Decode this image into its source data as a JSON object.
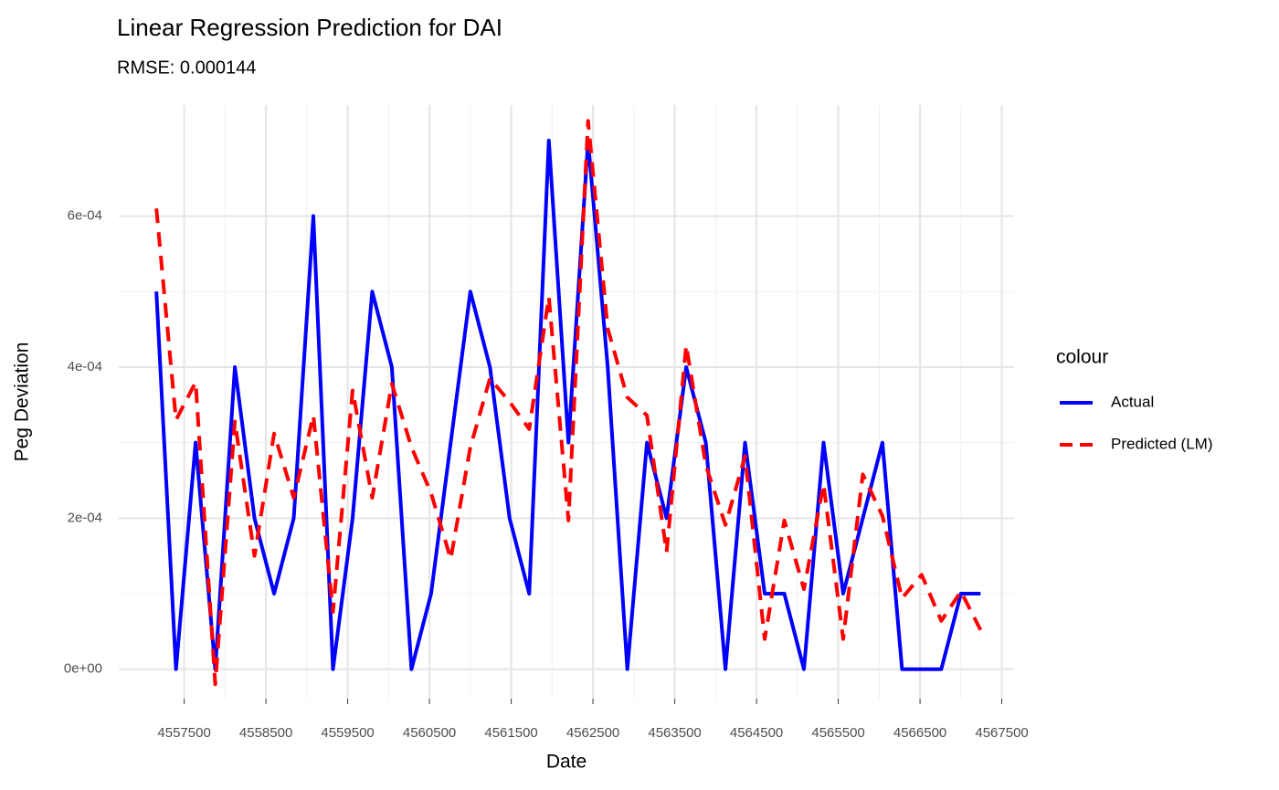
{
  "chart_data": {
    "type": "line",
    "title": "Linear Regression Prediction for DAI",
    "subtitle": "RMSE: 0.000144",
    "x_label": "Date",
    "y_label": "Peg Deviation",
    "legend_title": "colour",
    "legend_position": "right",
    "grid": true,
    "x": [
      4557160,
      4557400,
      4557640,
      4557880,
      4558120,
      4558360,
      4558600,
      4558840,
      4559080,
      4559320,
      4559560,
      4559800,
      4560040,
      4560280,
      4560520,
      4560760,
      4561000,
      4561240,
      4561480,
      4561720,
      4561960,
      4562200,
      4562440,
      4562680,
      4562920,
      4563160,
      4563400,
      4563640,
      4563880,
      4564120,
      4564360,
      4564600,
      4564840,
      4565080,
      4565320,
      4565560,
      4565800,
      4566040,
      4566280,
      4566520,
      4566760,
      4567000,
      4567240
    ],
    "series": [
      {
        "name": "Actual",
        "color": "#0000ff",
        "dash": "solid",
        "values": [
          0.0005,
          0,
          0.0003,
          0,
          0.0004,
          0.0002,
          0.0001,
          0.0002,
          0.0006,
          0,
          0.0002,
          0.0005,
          0.0004,
          0,
          0.0001,
          0.0003,
          0.0005,
          0.0004,
          0.0002,
          0.0001,
          0.0007,
          0.0003,
          0.0007,
          0.0004,
          0,
          0.0003,
          0.0002,
          0.0004,
          0.0003,
          0,
          0.0003,
          0.0001,
          0.0001,
          0,
          0.0003,
          0.0001,
          0.0002,
          0.0003,
          0,
          0,
          0,
          0.0001,
          0.0001
        ]
      },
      {
        "name": "Predicted (LM)",
        "color": "#ff0000",
        "dash": "dashed",
        "values": [
          0.00061,
          0.00033,
          0.00038,
          -2e-05,
          0.000328,
          0.00015,
          0.000312,
          0.000227,
          0.000336,
          7.6e-05,
          0.000369,
          0.000227,
          0.000378,
          0.000294,
          0.000233,
          0.000146,
          0.000294,
          0.000385,
          0.000354,
          0.000318,
          0.000493,
          0.000197,
          0.000726,
          0.000451,
          0.00036,
          0.000336,
          0.000155,
          0.000429,
          0.00027,
          0.000191,
          0.000282,
          4e-05,
          0.000197,
          0.000106,
          0.000245,
          4e-05,
          0.000258,
          0.000203,
          9.4e-05,
          0.000125,
          6.4e-05,
          0.000103,
          5.2e-05
        ]
      }
    ],
    "xlim": [
      4556700,
      4567650
    ],
    "xticks": [
      4557500,
      4558500,
      4559500,
      4560500,
      4561500,
      4562500,
      4563500,
      4564500,
      4565500,
      4566500,
      4567500
    ],
    "ylim": [
      -3.9e-05,
      0.000747
    ],
    "yticks": [
      {
        "value": 0,
        "label": "0e+00"
      },
      {
        "value": 0.0002,
        "label": "2e-04"
      },
      {
        "value": 0.0004,
        "label": "4e-04"
      },
      {
        "value": 0.0006,
        "label": "6e-04"
      }
    ]
  }
}
